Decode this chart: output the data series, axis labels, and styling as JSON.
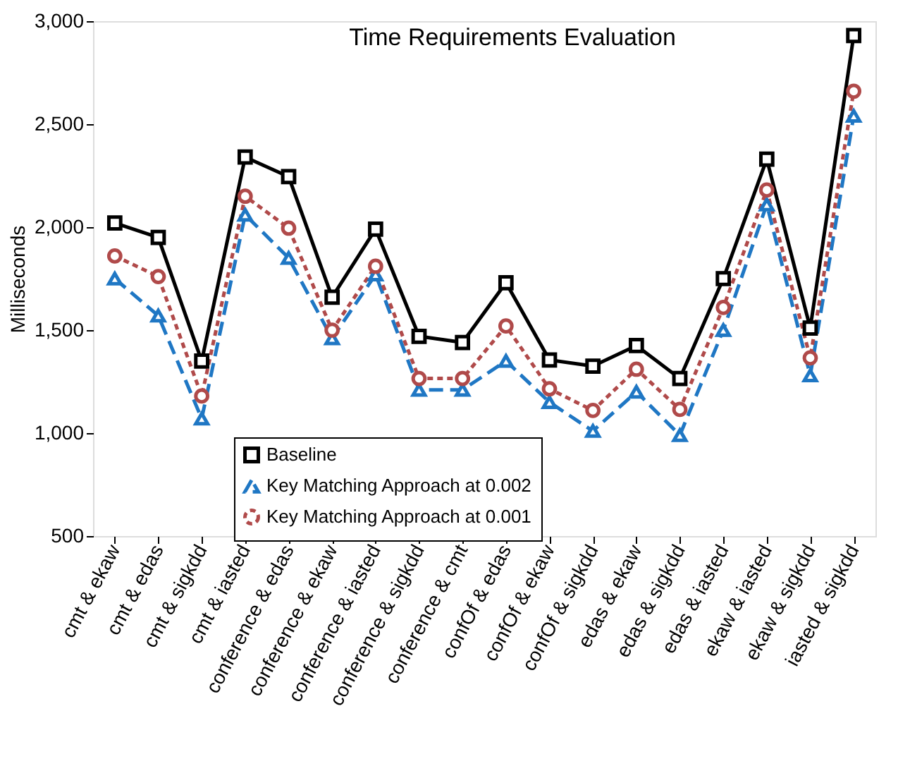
{
  "chart_data": {
    "type": "line",
    "title": "Time Requirements Evaluation",
    "ylabel": "Milliseconds",
    "categories": [
      "cmt & ekaw",
      "cmt & edas",
      "cmt & sigkdd",
      "cmt & iasted",
      "conference & edas",
      "conference & ekaw",
      "conference & iasted",
      "conference & sigkdd",
      "conference & cmt",
      "confOf & edas",
      "confOf & ekaw",
      "confOf & sigkdd",
      "edas & ekaw",
      "edas & sigkdd",
      "edas & iasted",
      "ekaw & iasted",
      "ekaw & sigkdd",
      "iasted & sigkdd"
    ],
    "series": [
      {
        "name": "Baseline",
        "color": "#000000",
        "marker": "square",
        "line_style": "solid",
        "values": [
          2020,
          1950,
          1350,
          2340,
          2245,
          1660,
          1990,
          1470,
          1440,
          1730,
          1355,
          1325,
          1425,
          1265,
          1750,
          2330,
          1510,
          2930
        ]
      },
      {
        "name": "Key Matching Approach at 0.002",
        "color": "#1f77c4",
        "marker": "triangle",
        "line_style": "dashed",
        "values": [
          1750,
          1570,
          1070,
          2060,
          1850,
          1460,
          1770,
          1210,
          1210,
          1350,
          1150,
          1010,
          1200,
          990,
          1500,
          2110,
          1280,
          2540
        ]
      },
      {
        "name": "Key Matching Approach at 0.001",
        "color": "#b04a4a",
        "marker": "circle",
        "line_style": "dotted",
        "values": [
          1860,
          1760,
          1180,
          2150,
          1995,
          1500,
          1810,
          1265,
          1265,
          1520,
          1215,
          1110,
          1310,
          1115,
          1610,
          2180,
          1365,
          2660
        ]
      }
    ],
    "ylim": [
      500,
      3000
    ],
    "yticks": [
      500,
      {
        "value": 1000,
        "label": "1,000"
      },
      {
        "value": 1500,
        "label": "1,500"
      },
      {
        "value": 2000,
        "label": "2,000"
      },
      {
        "value": 2500,
        "label": "2,500"
      },
      {
        "value": 3000,
        "label": "3,000"
      }
    ],
    "grid": false,
    "legend": "bottom left"
  }
}
